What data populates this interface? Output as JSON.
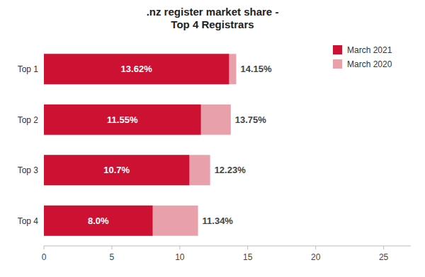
{
  "chart_data": {
    "type": "bar",
    "orientation": "horizontal",
    "stacked": false,
    "title": ".nz register market share -\nTop 4 Registrars",
    "categories": [
      "Top 1",
      "Top 2",
      "Top 3",
      "Top 4"
    ],
    "series": [
      {
        "name": "March 2021",
        "color": "#cc1133",
        "values": [
          13.62,
          11.55,
          10.7,
          8.0
        ],
        "value_labels": [
          "13.62%",
          "11.55%",
          "10.7%",
          "8.0%"
        ]
      },
      {
        "name": "March 2020",
        "color": "#e8a0aa",
        "values": [
          14.15,
          13.75,
          12.23,
          11.34
        ],
        "value_labels": [
          "14.15%",
          "13.75%",
          "12.23%",
          "11.34%"
        ]
      }
    ],
    "xlim": [
      0,
      27
    ],
    "xticks": [
      0,
      5,
      10,
      15,
      20,
      25
    ],
    "grid": false,
    "legend": "upper right",
    "data_labels": true
  }
}
